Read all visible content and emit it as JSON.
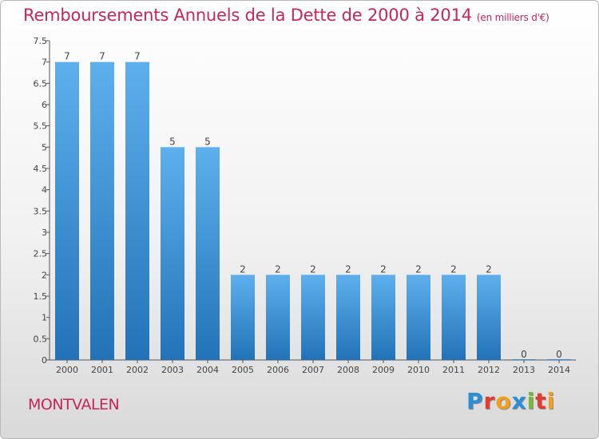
{
  "header": {
    "title": "Remboursements Annuels de la Dette de 2000 à 2014",
    "subtitle": "(en milliers d'€)"
  },
  "footer": {
    "commune": "MONTVALEN",
    "logo_text": "Proxiti",
    "logo_colors": [
      "#2a8fd6",
      "#e63b2e",
      "#f2a019",
      "#2a8fd6",
      "#79b83a",
      "#e63b2e",
      "#f2a019"
    ]
  },
  "chart_data": {
    "type": "bar",
    "title": "Remboursements Annuels de la Dette de 2000 à 2014",
    "subtitle": "(en milliers d'€)",
    "xlabel": "",
    "ylabel": "",
    "categories": [
      "2000",
      "2001",
      "2002",
      "2003",
      "2004",
      "2005",
      "2006",
      "2007",
      "2008",
      "2009",
      "2010",
      "2011",
      "2012",
      "2013",
      "2014"
    ],
    "values": [
      7,
      7,
      7,
      5,
      5,
      2,
      2,
      2,
      2,
      2,
      2,
      2,
      2,
      0,
      0
    ],
    "value_labels": [
      "7",
      "7",
      "7",
      "5",
      "5",
      "2",
      "2",
      "2",
      "2",
      "2",
      "2",
      "2",
      "2",
      "0",
      "0"
    ],
    "yticks": [
      "0",
      "0.5",
      "1",
      "1.5",
      "2",
      "2.5",
      "3",
      "3.5",
      "4",
      "4.5",
      "5",
      "5.5",
      "6",
      "6.5",
      "7",
      "7.5"
    ],
    "ylim": [
      0,
      7.5
    ],
    "grid": false,
    "bar_color": "#3d8fd6",
    "axis_color": "#555555",
    "label_color": "#444444"
  }
}
